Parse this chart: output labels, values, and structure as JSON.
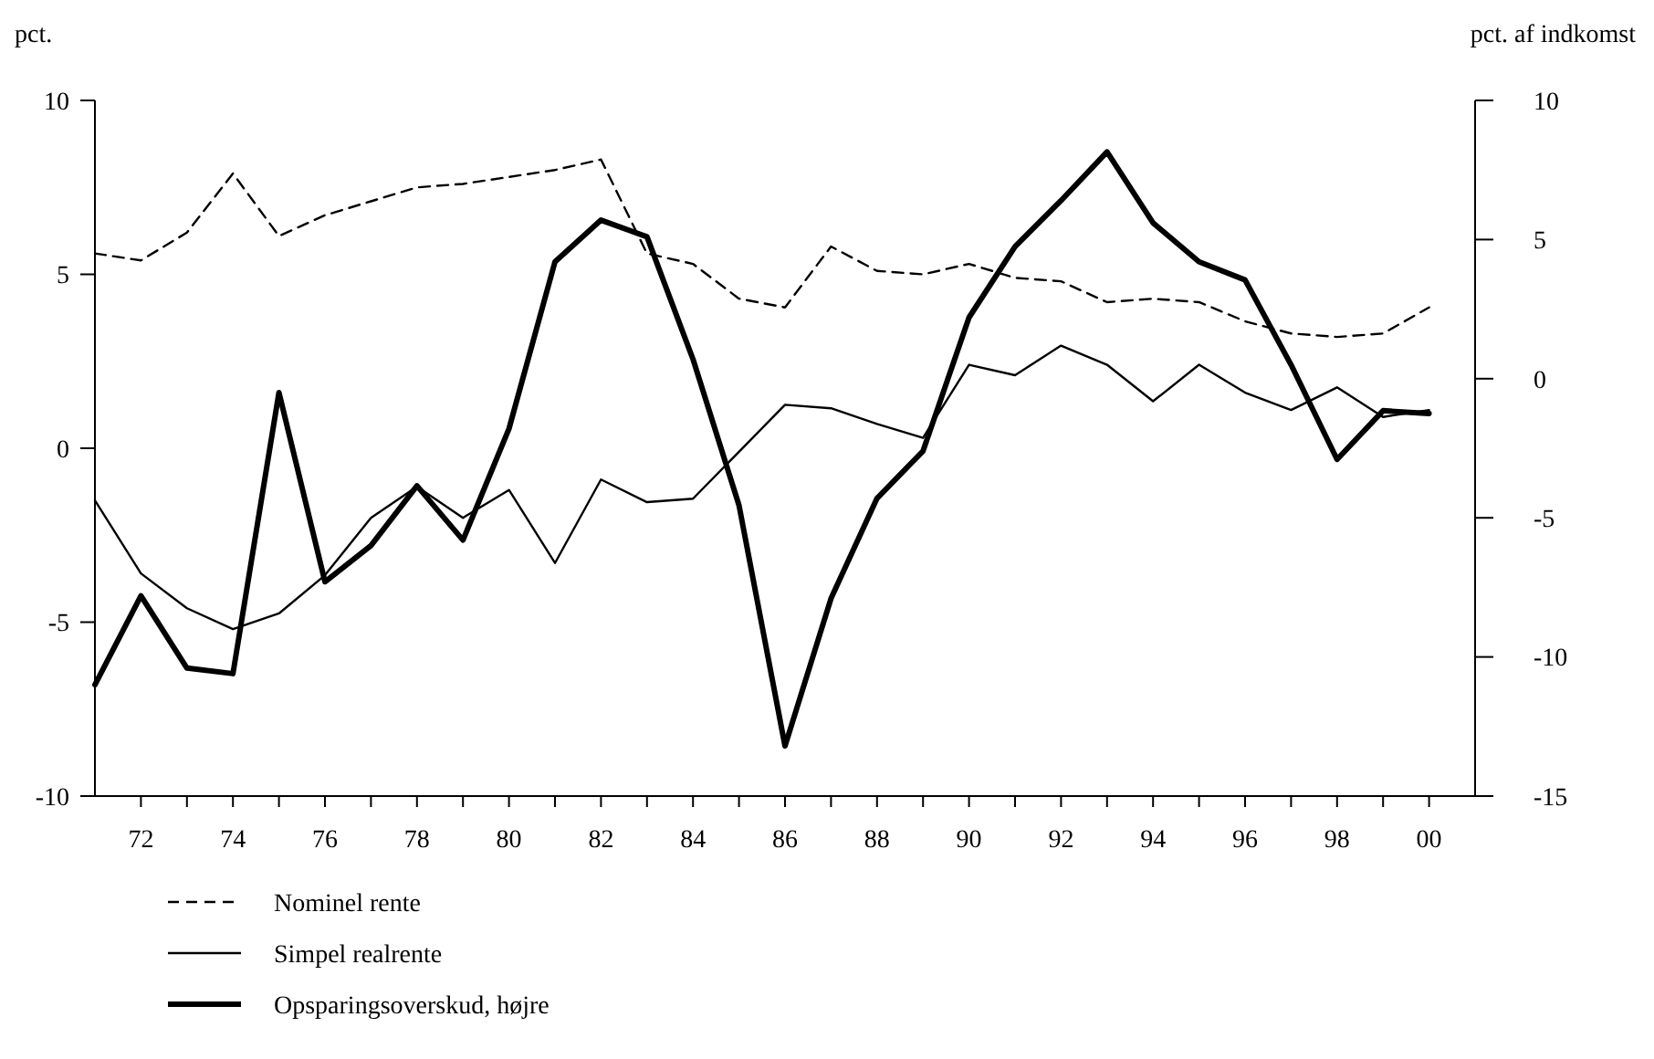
{
  "chart_data": {
    "type": "line",
    "ylabel": "pct.",
    "y2label": "pct. af indkomst",
    "x": [
      1971,
      1972,
      1973,
      1974,
      1975,
      1976,
      1977,
      1978,
      1979,
      1980,
      1981,
      1982,
      1983,
      1984,
      1985,
      1986,
      1987,
      1988,
      1989,
      1990,
      1991,
      1992,
      1993,
      1994,
      1995,
      1996,
      1997,
      1998,
      1999,
      2000
    ],
    "series": [
      {
        "name": "Nominel rente",
        "color": "#000000",
        "line_style": "dashed",
        "values": [
          5.6,
          5.4,
          6.2,
          7.9,
          6.1,
          6.7,
          7.1,
          7.5,
          7.6,
          7.8,
          8.0,
          8.3,
          5.6,
          5.3,
          4.3,
          4.05,
          5.8,
          5.1,
          5.0,
          5.3,
          4.9,
          4.8,
          4.2,
          4.3,
          4.2,
          3.65,
          3.3,
          3.2,
          3.3,
          4.05
        ]
      },
      {
        "name": "Simpel realrente",
        "color": "#000000",
        "line_style": "solid",
        "values": [
          -1.5,
          -3.6,
          -4.6,
          -5.2,
          -4.75,
          -3.65,
          -2.0,
          -1.1,
          -2.0,
          -1.2,
          -3.3,
          -0.9,
          -1.55,
          -1.45,
          -0.1,
          1.25,
          1.15,
          0.7,
          0.3,
          2.4,
          2.1,
          2.95,
          2.4,
          1.35,
          2.4,
          1.6,
          1.1,
          1.75,
          0.9,
          1.1
        ]
      },
      {
        "name": "Opsparingsoverskud, højre",
        "color": "#000000",
        "line_style": "solid",
        "axis": "y2",
        "values": [
          -11.0,
          -7.8,
          -10.4,
          -10.6,
          -0.5,
          -7.3,
          -6.0,
          -3.85,
          -5.8,
          -1.8,
          4.2,
          5.7,
          5.1,
          0.7,
          -4.55,
          -13.2,
          -7.9,
          -4.3,
          -2.6,
          2.2,
          4.75,
          6.4,
          8.15,
          5.6,
          4.2,
          3.55,
          0.5,
          -2.9,
          -1.15,
          -1.25
        ]
      }
    ],
    "xlim": [
      1971,
      2001
    ],
    "xticks": [
      {
        "value": 1972,
        "label": "72"
      },
      {
        "value": 1973,
        "label": null
      },
      {
        "value": 1974,
        "label": "74"
      },
      {
        "value": 1975,
        "label": null
      },
      {
        "value": 1976,
        "label": "76"
      },
      {
        "value": 1977,
        "label": null
      },
      {
        "value": 1978,
        "label": "78"
      },
      {
        "value": 1979,
        "label": null
      },
      {
        "value": 1980,
        "label": "80"
      },
      {
        "value": 1981,
        "label": null
      },
      {
        "value": 1982,
        "label": "82"
      },
      {
        "value": 1983,
        "label": null
      },
      {
        "value": 1984,
        "label": "84"
      },
      {
        "value": 1985,
        "label": null
      },
      {
        "value": 1986,
        "label": "86"
      },
      {
        "value": 1987,
        "label": null
      },
      {
        "value": 1988,
        "label": "88"
      },
      {
        "value": 1989,
        "label": null
      },
      {
        "value": 1990,
        "label": "90"
      },
      {
        "value": 1991,
        "label": null
      },
      {
        "value": 1992,
        "label": "92"
      },
      {
        "value": 1993,
        "label": null
      },
      {
        "value": 1994,
        "label": "94"
      },
      {
        "value": 1995,
        "label": null
      },
      {
        "value": 1996,
        "label": "96"
      },
      {
        "value": 1997,
        "label": null
      },
      {
        "value": 1998,
        "label": "98"
      },
      {
        "value": 1999,
        "label": null
      },
      {
        "value": 2000,
        "label": "00"
      }
    ],
    "ylim": [
      -10,
      10
    ],
    "yticks": [
      -10,
      -5,
      0,
      5,
      10
    ],
    "y2lim": [
      -15,
      10
    ],
    "y2ticks": [
      -15,
      -10,
      -5,
      0,
      5,
      10
    ],
    "legend": "bottom left",
    "grid": false
  }
}
